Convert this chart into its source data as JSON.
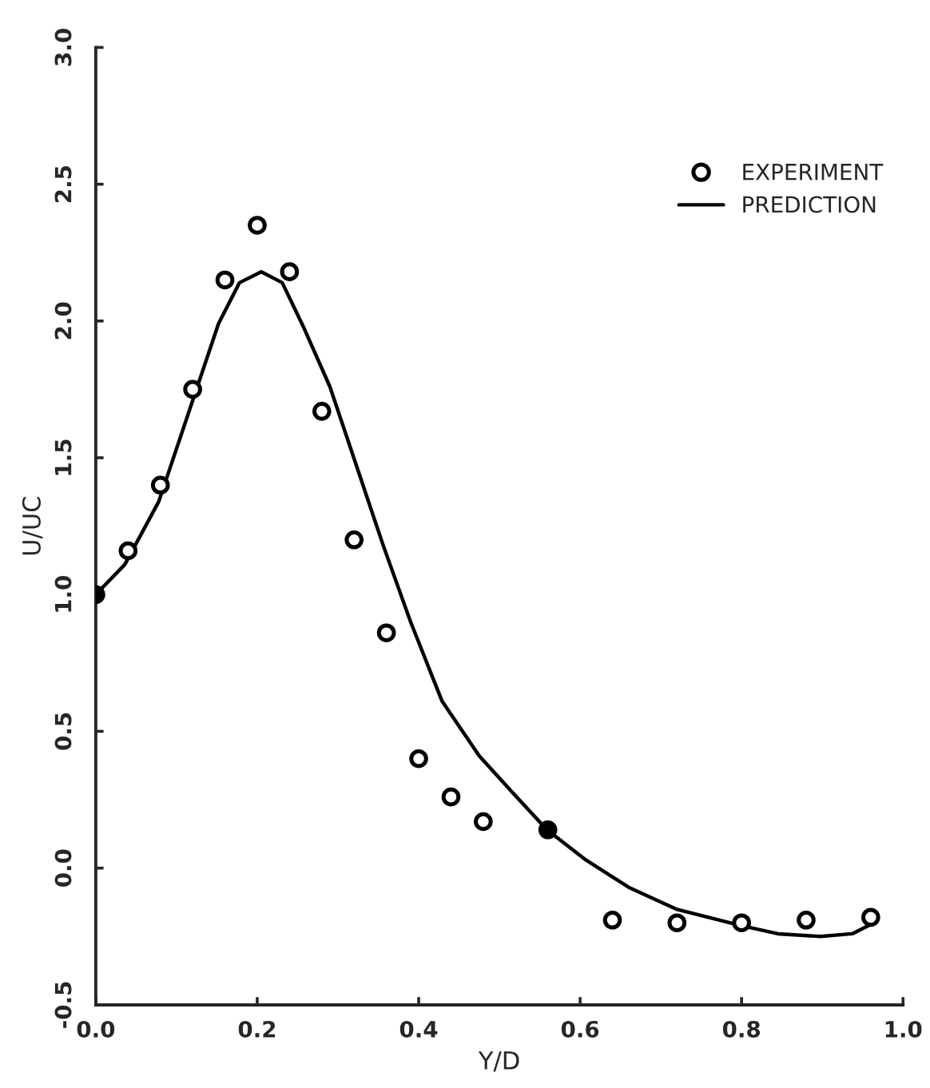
{
  "chart_data": {
    "type": "scatter",
    "xlabel": "Y/D",
    "ylabel": "U/UC",
    "xlim": [
      0,
      1
    ],
    "xticks": [
      {
        "value": 0,
        "label": "0.0"
      },
      {
        "value": 0.2,
        "label": "0.2"
      },
      {
        "value": 0.4,
        "label": "0.4"
      },
      {
        "value": 0.6,
        "label": "0.6"
      },
      {
        "value": 0.8,
        "label": "0.8"
      },
      {
        "value": 1,
        "label": "1.0"
      }
    ],
    "ylim": [
      -0.5,
      3
    ],
    "yticks": [
      {
        "value": -0.5,
        "label": "-0.5"
      },
      {
        "value": 0,
        "label": "0.0"
      },
      {
        "value": 0.5,
        "label": "0.5"
      },
      {
        "value": 1,
        "label": "1.0"
      },
      {
        "value": 1.5,
        "label": "1.5"
      },
      {
        "value": 2,
        "label": "2.0"
      },
      {
        "value": 2.5,
        "label": "2.5"
      },
      {
        "value": 3,
        "label": "3.0"
      }
    ],
    "grid": false,
    "legend": "top right",
    "series": [
      {
        "name": "EXPERIMENT",
        "marker": "circle",
        "color": "#000000",
        "x": [
          0.04,
          0.08,
          0.12,
          0.16,
          0.2,
          0.24,
          0.28,
          0.32,
          0.36,
          0.4,
          0.44,
          0.48,
          0.64,
          0.72,
          0.8,
          0.88,
          0.96
        ],
        "values": [
          1.16,
          1.4,
          1.75,
          2.15,
          2.35,
          2.18,
          1.67,
          1.2,
          0.86,
          0.4,
          0.26,
          0.17,
          -0.19,
          -0.2,
          -0.2,
          -0.19,
          -0.18
        ]
      },
      {
        "name": "PREDICTION",
        "type": "line",
        "color": "#000000",
        "x": [
          0,
          0.036,
          0.078,
          0.119,
          0.152,
          0.178,
          0.205,
          0.231,
          0.257,
          0.29,
          0.323,
          0.356,
          0.39,
          0.429,
          0.475,
          0.515,
          0.559,
          0.607,
          0.66,
          0.719,
          0.799,
          0.845,
          0.898,
          0.937,
          0.964
        ],
        "values": [
          1.0,
          1.11,
          1.34,
          1.7,
          1.99,
          2.14,
          2.18,
          2.14,
          1.98,
          1.76,
          1.47,
          1.18,
          0.9,
          0.61,
          0.41,
          0.28,
          0.14,
          0.03,
          -0.07,
          -0.15,
          -0.21,
          -0.24,
          -0.25,
          -0.24,
          -0.2
        ]
      },
      {
        "marker": "circle",
        "color": "#000000",
        "x": [
          0,
          0.56
        ],
        "values": [
          1.0,
          0.14
        ]
      }
    ]
  }
}
